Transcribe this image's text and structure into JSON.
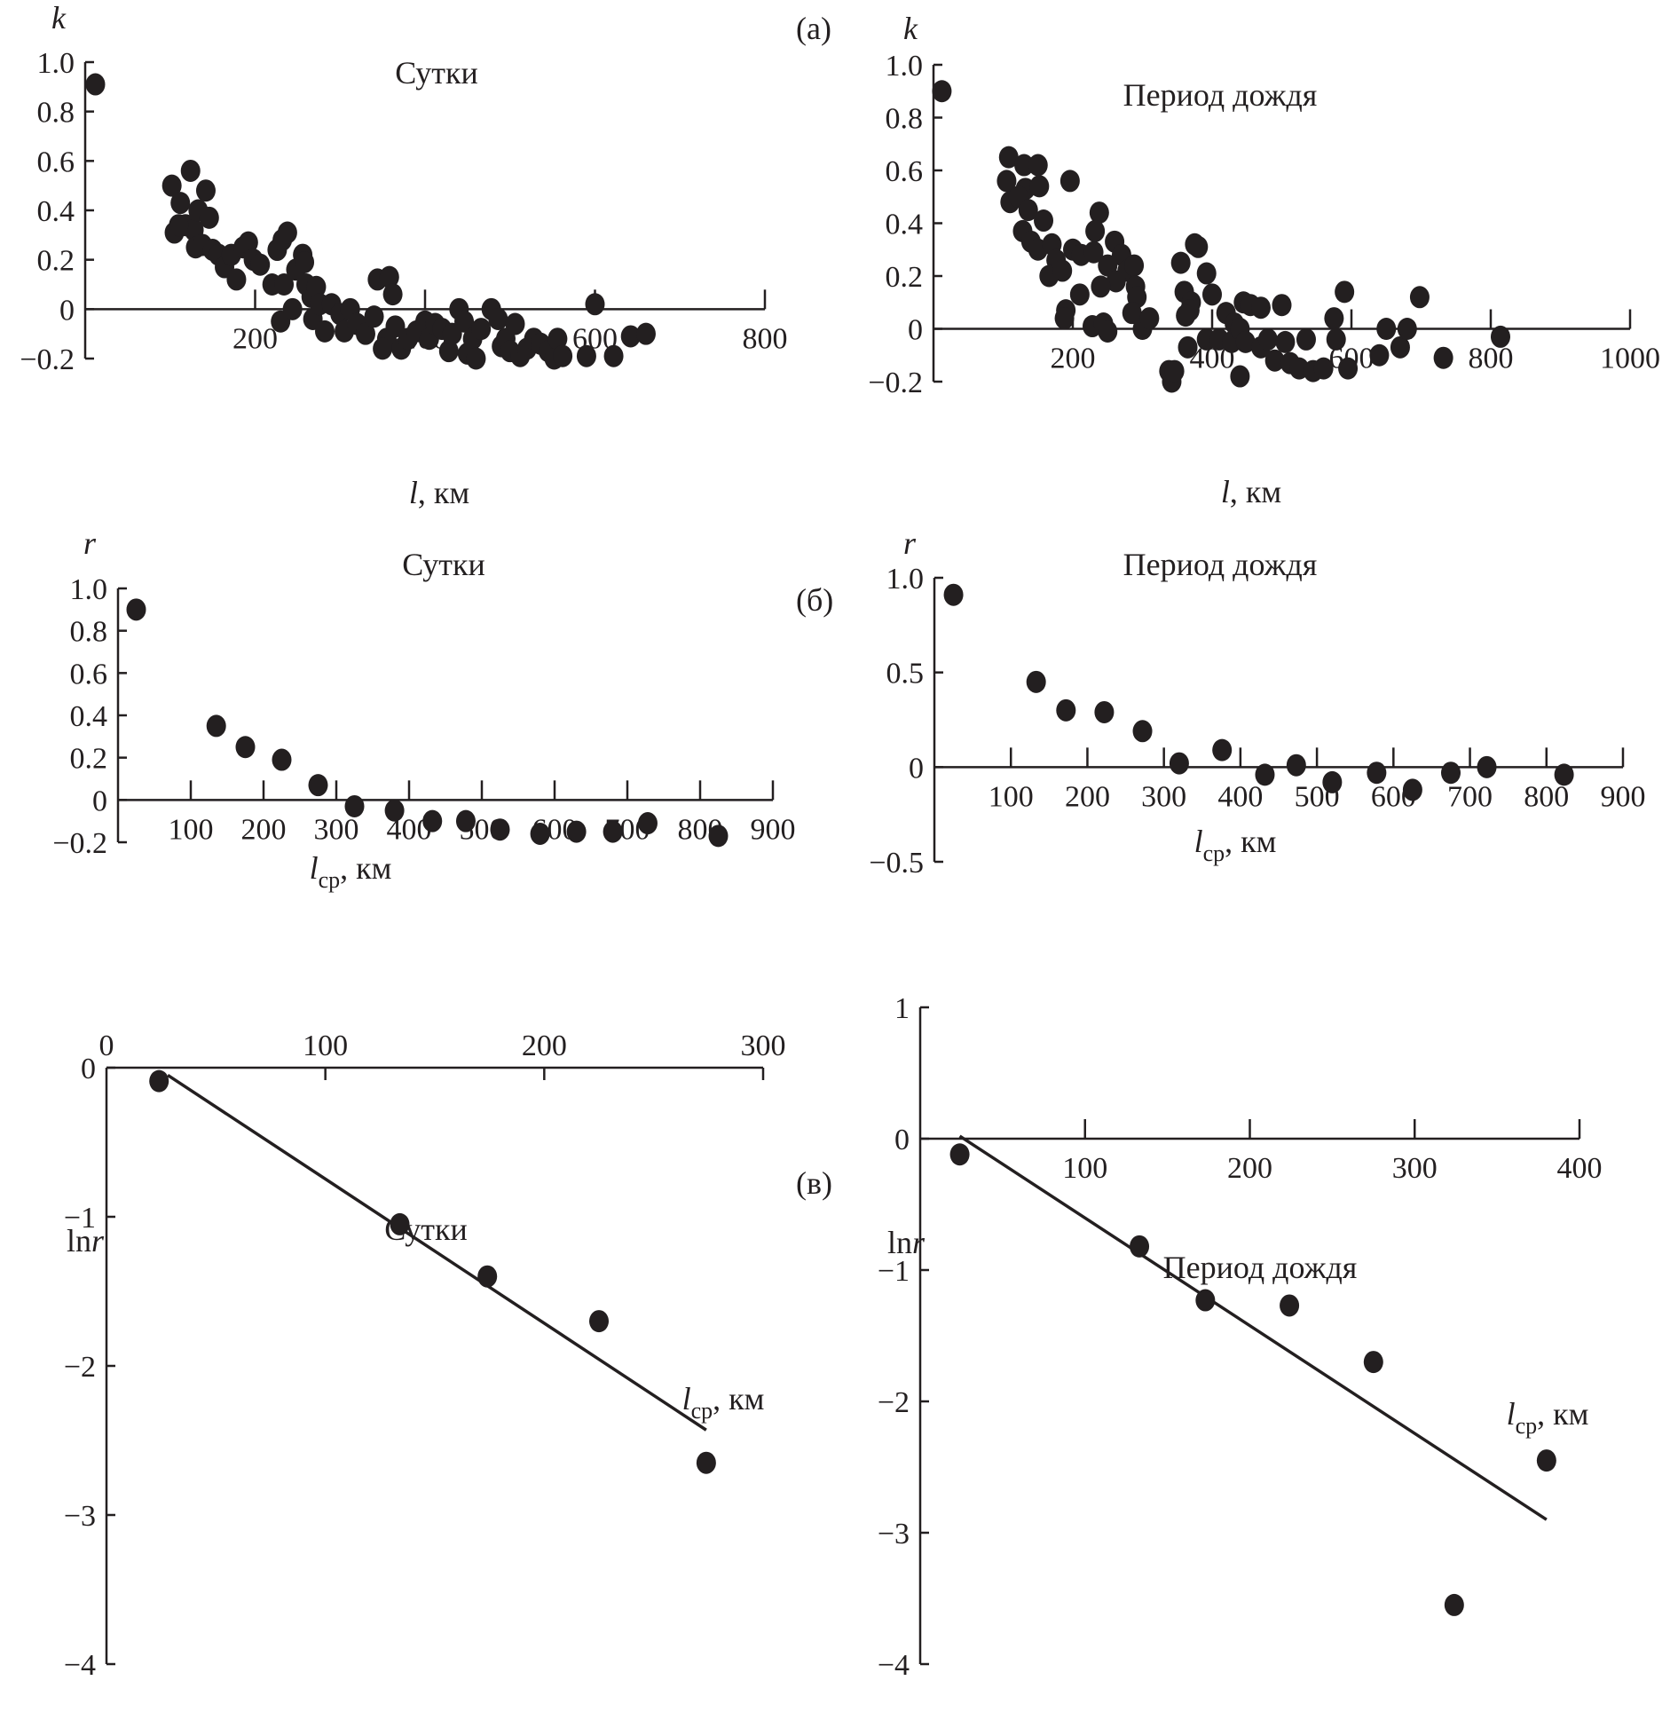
{
  "panel_labels": {
    "a": "(a)",
    "b": "(б)",
    "c": "(в)"
  },
  "chart_data": [
    {
      "id": "a-left",
      "type": "scatter",
      "title": "Сутки",
      "ylabel": "k",
      "xlabel": "l, км",
      "xlabel_main": "l",
      "xlabel_unit": ", км",
      "xlim": [
        0,
        800
      ],
      "ylim": [
        -0.2,
        1.0
      ],
      "xticks": [
        200,
        400,
        600,
        800
      ],
      "yticks": [
        1.0,
        0.8,
        0.6,
        0.4,
        0.2,
        0,
        -0.2
      ],
      "ytick_labels": [
        "1.0",
        "0.8",
        "0.6",
        "0.4",
        "0.2",
        "0",
        "−0.2"
      ],
      "points": [
        [
          12,
          0.91
        ],
        [
          102,
          0.5
        ],
        [
          124,
          0.56
        ],
        [
          112,
          0.43
        ],
        [
          142,
          0.48
        ],
        [
          118,
          0.34
        ],
        [
          128,
          0.32
        ],
        [
          133,
          0.4
        ],
        [
          146,
          0.37
        ],
        [
          105,
          0.31
        ],
        [
          110,
          0.34
        ],
        [
          130,
          0.25
        ],
        [
          138,
          0.26
        ],
        [
          150,
          0.24
        ],
        [
          157,
          0.22
        ],
        [
          164,
          0.17
        ],
        [
          172,
          0.22
        ],
        [
          178,
          0.12
        ],
        [
          186,
          0.25
        ],
        [
          192,
          0.27
        ],
        [
          198,
          0.2
        ],
        [
          206,
          0.18
        ],
        [
          226,
          0.24
        ],
        [
          232,
          0.28
        ],
        [
          238,
          0.31
        ],
        [
          220,
          0.1
        ],
        [
          234,
          0.1
        ],
        [
          230,
          -0.05
        ],
        [
          244,
          0.0
        ],
        [
          248,
          0.16
        ],
        [
          256,
          0.22
        ],
        [
          258,
          0.19
        ],
        [
          260,
          0.1
        ],
        [
          266,
          0.05
        ],
        [
          272,
          0.09
        ],
        [
          268,
          -0.04
        ],
        [
          276,
          0.02
        ],
        [
          282,
          -0.09
        ],
        [
          290,
          0.02
        ],
        [
          300,
          -0.02
        ],
        [
          305,
          -0.09
        ],
        [
          312,
          0.0
        ],
        [
          320,
          -0.06
        ],
        [
          330,
          -0.1
        ],
        [
          340,
          -0.03
        ],
        [
          344,
          0.12
        ],
        [
          355,
          -0.12
        ],
        [
          358,
          0.13
        ],
        [
          362,
          0.06
        ],
        [
          350,
          -0.16
        ],
        [
          365,
          -0.07
        ],
        [
          372,
          -0.16
        ],
        [
          380,
          -0.12
        ],
        [
          390,
          -0.09
        ],
        [
          400,
          -0.05
        ],
        [
          405,
          -0.12
        ],
        [
          412,
          -0.06
        ],
        [
          420,
          -0.08
        ],
        [
          428,
          -0.17
        ],
        [
          432,
          -0.1
        ],
        [
          440,
          0.0
        ],
        [
          446,
          -0.05
        ],
        [
          450,
          -0.18
        ],
        [
          456,
          -0.12
        ],
        [
          460,
          -0.2
        ],
        [
          466,
          -0.08
        ],
        [
          478,
          0.0
        ],
        [
          486,
          -0.04
        ],
        [
          490,
          -0.15
        ],
        [
          495,
          -0.12
        ],
        [
          500,
          -0.17
        ],
        [
          506,
          -0.06
        ],
        [
          512,
          -0.19
        ],
        [
          520,
          -0.16
        ],
        [
          528,
          -0.12
        ],
        [
          536,
          -0.14
        ],
        [
          545,
          -0.17
        ],
        [
          552,
          -0.2
        ],
        [
          556,
          -0.12
        ],
        [
          562,
          -0.19
        ],
        [
          600,
          0.02
        ],
        [
          590,
          -0.19
        ],
        [
          622,
          -0.19
        ],
        [
          642,
          -0.11
        ],
        [
          660,
          -0.1
        ]
      ]
    },
    {
      "id": "a-right",
      "type": "scatter",
      "title": "Период дождя",
      "ylabel": "k",
      "xlabel": "l, км",
      "xlabel_main": "l",
      "xlabel_unit": ", км",
      "xlim": [
        0,
        1000
      ],
      "ylim": [
        -0.2,
        1.0
      ],
      "xticks": [
        200,
        400,
        600,
        800,
        1000
      ],
      "yticks": [
        1.0,
        0.8,
        0.6,
        0.4,
        0.2,
        0,
        -0.2
      ],
      "ytick_labels": [
        "1.0",
        "0.8",
        "0.6",
        "0.4",
        "0.2",
        "0",
        "−0.2"
      ],
      "points": [
        [
          12,
          0.9
        ],
        [
          108,
          0.65
        ],
        [
          130,
          0.62
        ],
        [
          150,
          0.62
        ],
        [
          105,
          0.56
        ],
        [
          132,
          0.53
        ],
        [
          152,
          0.54
        ],
        [
          110,
          0.48
        ],
        [
          122,
          0.5
        ],
        [
          136,
          0.45
        ],
        [
          158,
          0.41
        ],
        [
          196,
          0.56
        ],
        [
          128,
          0.37
        ],
        [
          140,
          0.33
        ],
        [
          150,
          0.3
        ],
        [
          170,
          0.32
        ],
        [
          176,
          0.26
        ],
        [
          166,
          0.2
        ],
        [
          185,
          0.22
        ],
        [
          200,
          0.3
        ],
        [
          212,
          0.28
        ],
        [
          230,
          0.29
        ],
        [
          238,
          0.44
        ],
        [
          232,
          0.37
        ],
        [
          260,
          0.33
        ],
        [
          270,
          0.28
        ],
        [
          278,
          0.22
        ],
        [
          288,
          0.24
        ],
        [
          250,
          0.24
        ],
        [
          262,
          0.18
        ],
        [
          240,
          0.16
        ],
        [
          210,
          0.13
        ],
        [
          190,
          0.07
        ],
        [
          188,
          0.04
        ],
        [
          228,
          0.01
        ],
        [
          244,
          0.02
        ],
        [
          250,
          -0.01
        ],
        [
          290,
          0.16
        ],
        [
          292,
          0.12
        ],
        [
          285,
          0.06
        ],
        [
          300,
          0.0
        ],
        [
          310,
          0.04
        ],
        [
          355,
          0.25
        ],
        [
          375,
          0.32
        ],
        [
          380,
          0.31
        ],
        [
          392,
          0.21
        ],
        [
          360,
          0.14
        ],
        [
          370,
          0.1
        ],
        [
          368,
          0.07
        ],
        [
          400,
          0.13
        ],
        [
          362,
          0.05
        ],
        [
          365,
          -0.07
        ],
        [
          392,
          -0.04
        ],
        [
          410,
          -0.04
        ],
        [
          428,
          -0.05
        ],
        [
          420,
          0.06
        ],
        [
          445,
          0.1
        ],
        [
          455,
          0.09
        ],
        [
          470,
          0.08
        ],
        [
          432,
          0.02
        ],
        [
          440,
          0.0
        ],
        [
          448,
          -0.05
        ],
        [
          470,
          -0.07
        ],
        [
          480,
          -0.04
        ],
        [
          490,
          -0.12
        ],
        [
          500,
          0.09
        ],
        [
          505,
          -0.05
        ],
        [
          512,
          -0.13
        ],
        [
          525,
          -0.15
        ],
        [
          535,
          -0.04
        ],
        [
          545,
          -0.16
        ],
        [
          560,
          -0.15
        ],
        [
          575,
          0.04
        ],
        [
          578,
          -0.04
        ],
        [
          590,
          0.14
        ],
        [
          595,
          -0.15
        ],
        [
          338,
          -0.16
        ],
        [
          342,
          -0.2
        ],
        [
          346,
          -0.16
        ],
        [
          440,
          -0.18
        ],
        [
          640,
          -0.1
        ],
        [
          650,
          0.0
        ],
        [
          670,
          -0.07
        ],
        [
          680,
          0.0
        ],
        [
          698,
          0.12
        ],
        [
          732,
          -0.11
        ],
        [
          814,
          -0.03
        ]
      ]
    },
    {
      "id": "b-left",
      "type": "scatter",
      "title": "Сутки",
      "ylabel": "r",
      "xlabel": "lср, км",
      "xlabel_main": "l",
      "xlabel_sub": "ср",
      "xlabel_unit": ", км",
      "xlim": [
        0,
        900
      ],
      "ylim": [
        -0.2,
        1.0
      ],
      "xticks": [
        100,
        200,
        300,
        400,
        500,
        600,
        700,
        800,
        900
      ],
      "yticks": [
        1.0,
        0.8,
        0.6,
        0.4,
        0.2,
        0,
        -0.2
      ],
      "ytick_labels": [
        "1.0",
        "0.8",
        "0.6",
        "0.4",
        "0.2",
        "0",
        "−0.2"
      ],
      "points": [
        [
          25,
          0.9
        ],
        [
          135,
          0.35
        ],
        [
          175,
          0.25
        ],
        [
          225,
          0.19
        ],
        [
          275,
          0.07
        ],
        [
          325,
          -0.03
        ],
        [
          380,
          -0.05
        ],
        [
          432,
          -0.1
        ],
        [
          478,
          -0.1
        ],
        [
          525,
          -0.14
        ],
        [
          580,
          -0.16
        ],
        [
          630,
          -0.15
        ],
        [
          680,
          -0.15
        ],
        [
          728,
          -0.11
        ],
        [
          825,
          -0.17
        ]
      ]
    },
    {
      "id": "b-right",
      "type": "scatter",
      "title": "Период дождя",
      "ylabel": "r",
      "xlabel": "lср, км",
      "xlabel_main": "l",
      "xlabel_sub": "ср",
      "xlabel_unit": ", км",
      "xlim": [
        0,
        900
      ],
      "ylim": [
        -0.5,
        1.0
      ],
      "xticks": [
        100,
        200,
        300,
        400,
        500,
        600,
        700,
        800,
        900
      ],
      "yticks": [
        1.0,
        0.5,
        0,
        -0.5
      ],
      "ytick_labels": [
        "1.0",
        "0.5",
        "0",
        "−0.5"
      ],
      "points": [
        [
          25,
          0.91
        ],
        [
          133,
          0.45
        ],
        [
          172,
          0.3
        ],
        [
          222,
          0.29
        ],
        [
          272,
          0.19
        ],
        [
          320,
          0.02
        ],
        [
          376,
          0.09
        ],
        [
          432,
          -0.04
        ],
        [
          473,
          0.01
        ],
        [
          520,
          -0.08
        ],
        [
          578,
          -0.03
        ],
        [
          625,
          -0.12
        ],
        [
          675,
          -0.03
        ],
        [
          722,
          0.0
        ],
        [
          823,
          -0.04
        ]
      ]
    },
    {
      "id": "c-left",
      "type": "scatter",
      "title": "Сутки",
      "ylabel": "lnr",
      "ylabel_main": "ln",
      "ylabel_var": "r",
      "xlabel": "lср, км",
      "xlabel_main": "l",
      "xlabel_sub": "ср",
      "xlabel_unit": ", км",
      "x_axis_position": "top",
      "xlim": [
        0,
        300
      ],
      "ylim": [
        -4,
        0
      ],
      "xticks": [
        0,
        100,
        200,
        300
      ],
      "yticks": [
        0,
        -1,
        -2,
        -3,
        -4
      ],
      "ytick_labels": [
        "0",
        "−1",
        "−2",
        "−3",
        "−4"
      ],
      "points": [
        [
          24,
          -0.09
        ],
        [
          134,
          -1.05
        ],
        [
          174,
          -1.4
        ],
        [
          225,
          -1.7
        ],
        [
          274,
          -2.65
        ]
      ],
      "fit_line": {
        "x": [
          28,
          274
        ],
        "y": [
          -0.05,
          -2.43
        ]
      }
    },
    {
      "id": "c-right",
      "type": "scatter",
      "title": "Период дождя",
      "ylabel": "lnr",
      "ylabel_main": "ln",
      "ylabel_var": "r",
      "xlabel": "lср, км",
      "xlabel_main": "l",
      "xlabel_sub": "ср",
      "xlabel_unit": ", км",
      "xlim": [
        0,
        400
      ],
      "ylim": [
        -4,
        1
      ],
      "xticks": [
        100,
        200,
        300,
        400
      ],
      "yticks": [
        1,
        0,
        -1,
        -2,
        -3,
        -4
      ],
      "ytick_labels": [
        "1",
        "0",
        "−1",
        "−2",
        "−3",
        "−4"
      ],
      "points": [
        [
          24,
          -0.12
        ],
        [
          133,
          -0.82
        ],
        [
          173,
          -1.23
        ],
        [
          224,
          -1.27
        ],
        [
          275,
          -1.7
        ],
        [
          324,
          -3.55
        ],
        [
          380,
          -2.45
        ]
      ],
      "fit_line": {
        "x": [
          24,
          380
        ],
        "y": [
          0.02,
          -2.9
        ]
      }
    }
  ]
}
